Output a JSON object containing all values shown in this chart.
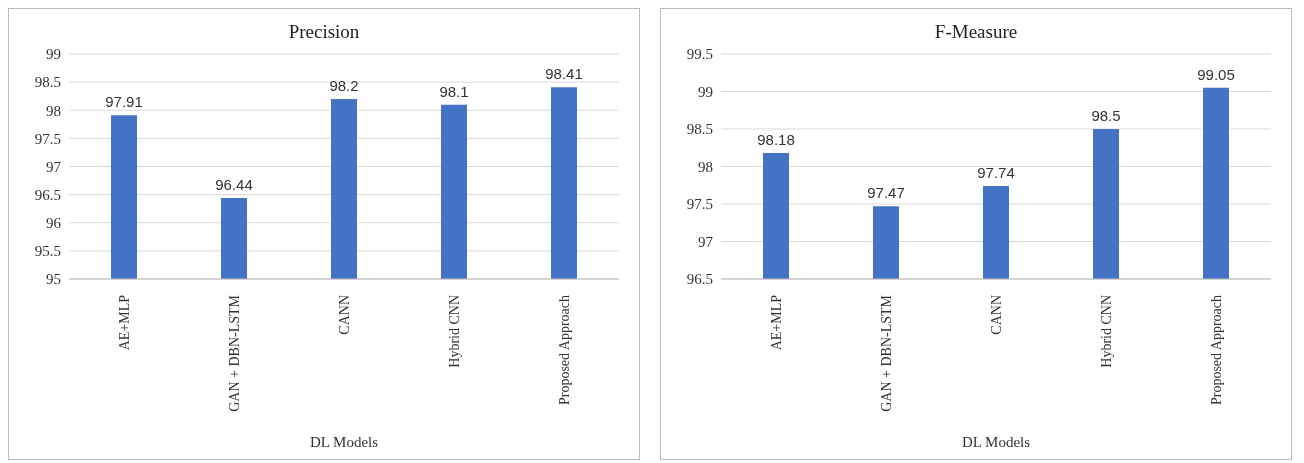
{
  "chart_data": [
    {
      "type": "bar",
      "title": "Precision",
      "xlabel": "DL Models",
      "categories": [
        "AE+MLP",
        "GAN + DBN-LSTM",
        "CANN",
        "Hybrid CNN",
        "Proposed Approach"
      ],
      "values": [
        97.91,
        96.44,
        98.2,
        98.1,
        98.41
      ],
      "color": "#4472c4",
      "ylim": [
        95,
        99
      ],
      "yticks": [
        95,
        95.5,
        96,
        96.5,
        97,
        97.5,
        98,
        98.5,
        99
      ],
      "grid": "y",
      "data_labels": true,
      "legend": false
    },
    {
      "type": "bar",
      "title": "F-Measure",
      "xlabel": "DL Models",
      "categories": [
        "AE+MLP",
        "GAN + DBN-LSTM",
        "CANN",
        "Hybrid CNN",
        "Proposed Approach"
      ],
      "values": [
        98.18,
        97.47,
        97.74,
        98.5,
        99.05
      ],
      "color": "#4472c4",
      "ylim": [
        96.5,
        99.5
      ],
      "yticks": [
        96.5,
        97,
        97.5,
        98,
        98.5,
        99,
        99.5
      ],
      "grid": "y",
      "data_labels": true,
      "legend": false
    }
  ]
}
